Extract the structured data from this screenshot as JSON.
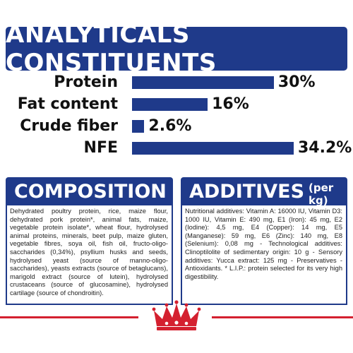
{
  "title": "ANALYTICALS CONSTITUENTS",
  "chart_data": {
    "type": "bar",
    "orientation": "horizontal",
    "categories": [
      "Protein",
      "Fat content",
      "Crude fiber",
      "NFE"
    ],
    "values": [
      30,
      16,
      2.6,
      34.2
    ],
    "value_labels": [
      "30%",
      "16%",
      "2.6%",
      "34.2%"
    ],
    "xlim": [
      0,
      34.2
    ],
    "grid": false,
    "bar_color": "#1f3a8a"
  },
  "composition": {
    "heading": "COMPOSITION",
    "text": "Dehydrated poultry protein, rice, maize flour, dehydrated pork protein*, animal fats, maize, vegetable protein isolate*, wheat flour, hydrolysed animal proteins, minerals, beet pulp, maize gluten, vegetable fibres, soya oil, fish oil, fructo-oligo-saccharides (0,34%), psyllium husks and seeds, hydrolysed yeast (source of manno-oligo-saccharides), yeasts extracts (source of betaglucans), marigold extract (source of lutein), hydrolysed crustaceans (source of glucosamine), hydrolysed cartilage (source of chondroitin)."
  },
  "additives": {
    "heading": "ADDITIVES",
    "heading_suffix": "(per kg)",
    "text": "Nutritional additives: Vitamin A: 16000 IU, Vitamin D3: 1000 IU, Vitamin E: 490 mg, E1 (Iron): 45 mg, E2 (Iodine): 4,5 mg, E4 (Copper): 14 mg, E5 (Manganese): 59 mg, E6 (Zinc): 140 mg, E8 (Selenium): 0,08 mg - Technological additives: Clinoptilolite of sedimentary origin: 10 g - Sensory additives: Yucca extract: 125 mg - Preservatives - Antioxidants. * L.I.P.: protein selected for its very high digestibility."
  },
  "colors": {
    "brand_blue": "#1f3a8a",
    "brand_red": "#d4202f"
  },
  "logo_icon": "royal-canin-crown-icon"
}
